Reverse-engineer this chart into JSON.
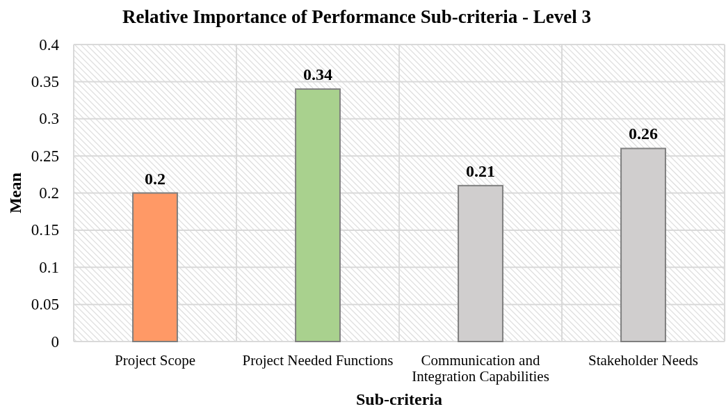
{
  "chart_data": {
    "type": "bar",
    "title": "Relative Importance of Performance Sub-criteria - Level 3",
    "xlabel": "Sub-criteria",
    "ylabel": "Mean",
    "categories": [
      "Project Scope",
      "Project Needed Functions",
      "Communication and Integration Capabilities",
      "Stakeholder Needs"
    ],
    "values": [
      0.2,
      0.34,
      0.21,
      0.26
    ],
    "colors": [
      "#ff9966",
      "#a9d18e",
      "#d0cece",
      "#d0cece"
    ],
    "ylim": [
      0,
      0.4
    ],
    "yticks": [
      0,
      0.05,
      0.1,
      0.15,
      0.2,
      0.25,
      0.3,
      0.35,
      0.4
    ],
    "grid": true,
    "data_labels": true
  }
}
